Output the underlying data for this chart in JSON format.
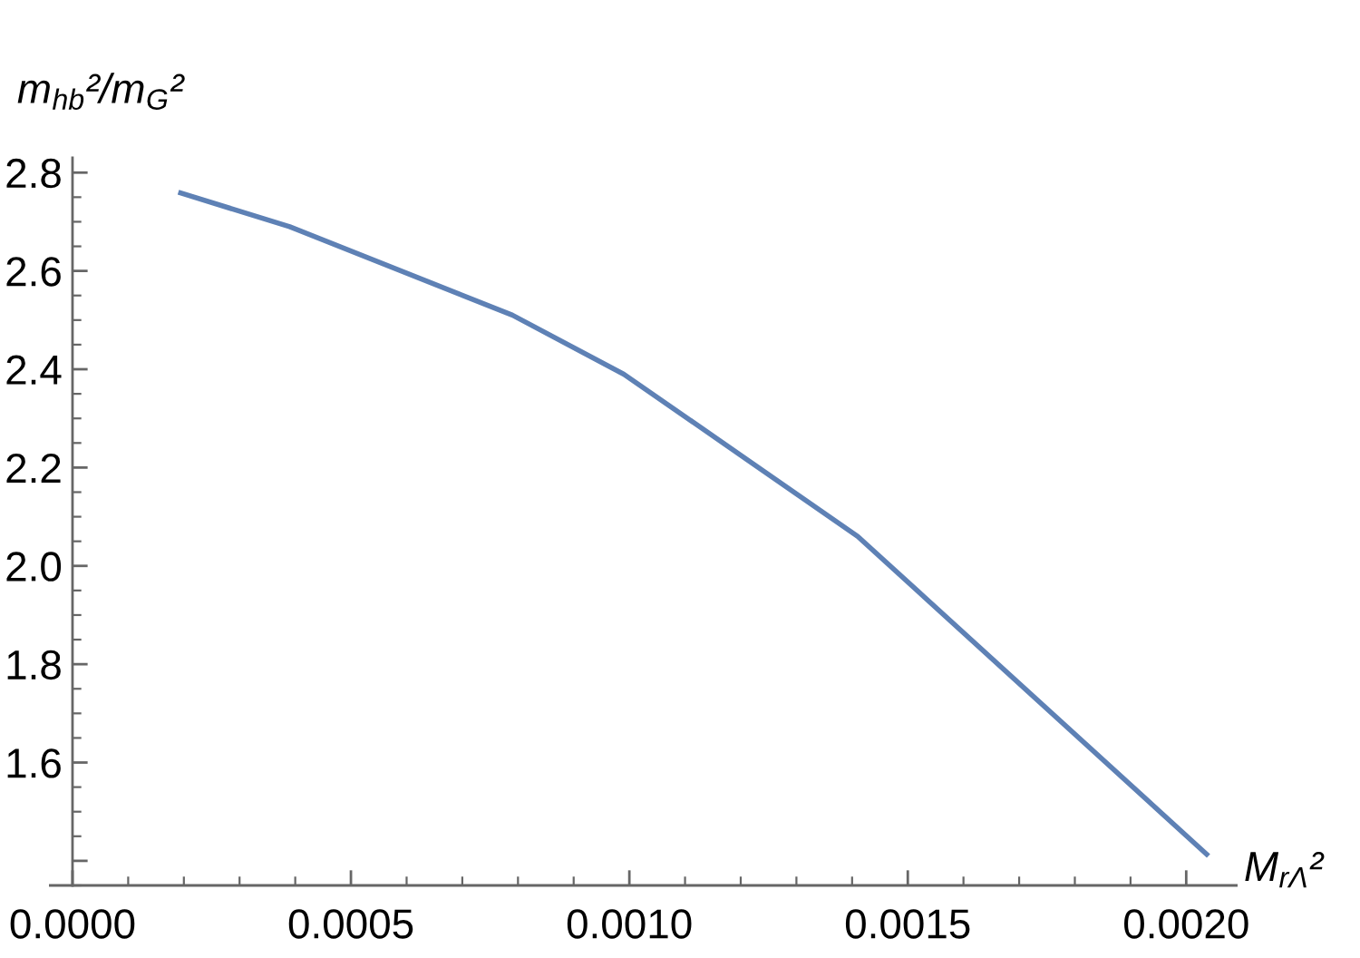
{
  "chart_data": {
    "type": "line",
    "ylabel": "m$_{hb}$²/m$_{G}$²",
    "xlabel": "M$_{rΛ}$²",
    "x": [
      0.00019,
      0.00039,
      0.00079,
      0.00099,
      0.00141,
      0.00204
    ],
    "series": [
      {
        "color": "#5e81b5",
        "values": [
          2.76,
          2.69,
          2.51,
          2.39,
          2.06,
          1.41
        ]
      }
    ],
    "xlim": [
      -4e-05,
      0.00209
    ],
    "ylim": [
      1.35,
      2.83
    ],
    "xticks": [
      {
        "value": 0,
        "label": "0.0000"
      },
      {
        "value": 0.0005,
        "label": "0.0005"
      },
      {
        "value": 0.001,
        "label": "0.0010"
      },
      {
        "value": 0.0015,
        "label": "0.0015"
      },
      {
        "value": 0.002,
        "label": "0.0020"
      }
    ],
    "yticks": [
      {
        "value": 1.4,
        "label": null
      },
      1.6,
      1.8,
      {
        "value": 2.0,
        "label": "2.0"
      },
      2.2,
      2.4,
      2.6,
      2.8
    ],
    "grid": false,
    "marker": "none",
    "line_style": "solid"
  }
}
